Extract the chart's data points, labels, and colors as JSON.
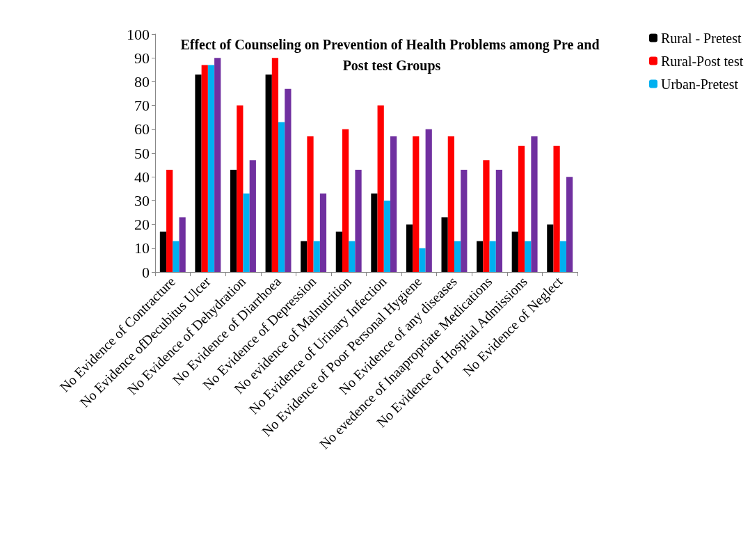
{
  "chart_data": {
    "type": "bar",
    "title": "Effect of Counseling on Prevention of Health Problems among Pre and Post test Groups",
    "categories": [
      "No Evidence of Contracture",
      "No Evidence ofDecubitus Ulcer",
      "No Evidence of Dehydration",
      "No Evidence of Diarrhoea",
      "No Evidence of Depression",
      "No evidence of Malnutrition",
      "No Evidence of Urinary Infection",
      "No Evidence of Poor Personal Hygiene",
      "No Evidence of any diseases",
      "No evedence of Inaapropriate Medications",
      "No Evidence of Hospital Admissions",
      "No Evidence of Neglect"
    ],
    "series": [
      {
        "name": "Rural - Pretest",
        "color": "#000000",
        "values": [
          17,
          83,
          43,
          83,
          13,
          17,
          33,
          20,
          23,
          13,
          17,
          20
        ]
      },
      {
        "name": "Rural-Post test",
        "color": "#ff0000",
        "values": [
          43,
          87,
          70,
          90,
          57,
          60,
          70,
          57,
          57,
          47,
          53,
          53
        ]
      },
      {
        "name": "Urban-Pretest",
        "color": "#00b0f0",
        "values": [
          13,
          87,
          33,
          63,
          13,
          13,
          30,
          10,
          13,
          13,
          13,
          13
        ]
      },
      {
        "color": "#7030a0",
        "values": [
          23,
          90,
          47,
          77,
          33,
          43,
          57,
          60,
          43,
          43,
          57,
          40
        ]
      }
    ],
    "ylim": [
      0,
      100
    ],
    "yticks": [
      0,
      10,
      20,
      30,
      40,
      50,
      60,
      70,
      80,
      90,
      100
    ],
    "grid": false,
    "legend": "top right"
  }
}
